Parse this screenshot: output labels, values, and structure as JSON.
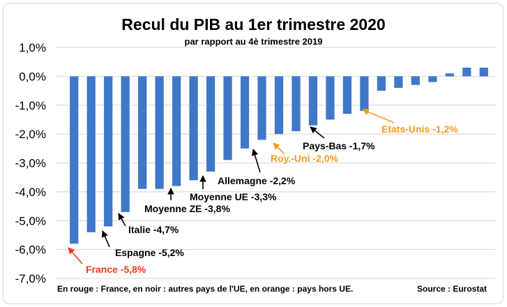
{
  "chart_data": {
    "type": "bar",
    "title": "Recul du PIB au 1er trimestre 2020",
    "subtitle": "par rapport au 4è trimestre 2019",
    "ylim": [
      -7,
      1
    ],
    "yticks": [
      1,
      0,
      -1,
      -2,
      -3,
      -4,
      -5,
      -6,
      -7
    ],
    "ytick_labels": [
      "1,0%",
      "0,0%",
      "-1,0%",
      "-2,0%",
      "-3,0%",
      "-4,0%",
      "-5,0%",
      "-6,0%",
      "-7,0%"
    ],
    "grid": true,
    "bar_color": "#3f78c9",
    "values": [
      -5.8,
      -5.4,
      -5.2,
      -4.7,
      -3.9,
      -3.9,
      -3.8,
      -3.6,
      -3.3,
      -2.9,
      -2.5,
      -2.2,
      -2.0,
      -1.9,
      -1.7,
      -1.5,
      -1.3,
      -1.2,
      -0.5,
      -0.4,
      -0.3,
      -0.2,
      0.1,
      0.3,
      0.3
    ],
    "annotations": [
      {
        "bar": 0,
        "text": "France -5,8%",
        "color": "#e8391b"
      },
      {
        "bar": 2,
        "text": "Espagne -5,2%",
        "color": "#000000"
      },
      {
        "bar": 3,
        "text": "Italie -4,7%",
        "color": "#000000"
      },
      {
        "bar": 6,
        "text": "Moyenne ZE -3,8%",
        "color": "#000000"
      },
      {
        "bar": 8,
        "text": "Moyenne UE -3,3%",
        "color": "#000000"
      },
      {
        "bar": 11,
        "text": "Allemagne -2,2%",
        "color": "#000000"
      },
      {
        "bar": 12,
        "text": "Roy.-Uni -2,0%",
        "color": "#f39c1f"
      },
      {
        "bar": 14,
        "text": "Pays-Bas -1,7%",
        "color": "#000000"
      },
      {
        "bar": 17,
        "text": "Etats-Unis -1,2%",
        "color": "#f39c1f"
      }
    ]
  },
  "footer": {
    "legend_note": "En rouge : France, en noir : autres pays de l'UE, en orange : pays hors UE.",
    "source": "Source : Eurostat"
  }
}
